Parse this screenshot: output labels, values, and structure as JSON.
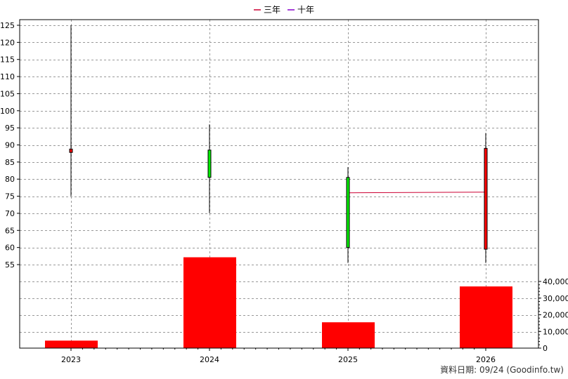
{
  "chart_data": {
    "type": "candlestick",
    "categories": [
      "2023",
      "2024",
      "2025",
      "2026"
    ],
    "candles": [
      {
        "year": "2023",
        "open": 87.8,
        "close": 88.8,
        "high": 125,
        "low": 75,
        "color": "#ff0000"
      },
      {
        "year": "2024",
        "open": 88.5,
        "close": 80.5,
        "high": 96,
        "low": 70,
        "color": "#00ee00"
      },
      {
        "year": "2025",
        "open": 80.5,
        "close": 60,
        "high": 83.5,
        "low": 55.5,
        "color": "#00ee00"
      },
      {
        "year": "2026",
        "open": 59.5,
        "close": 89,
        "high": 93.5,
        "low": 55.5,
        "color": "#ff0000"
      }
    ],
    "moving_averages": [
      {
        "name": "三年",
        "color": "#cc0033",
        "points": [
          {
            "x": "2025",
            "y": 76
          },
          {
            "x": "2026",
            "y": 76.2
          }
        ]
      },
      {
        "name": "十年",
        "color": "#8800cc",
        "points": []
      }
    ],
    "volume": {
      "values": [
        4500,
        54500,
        15500,
        37000
      ],
      "color": "#ff0000",
      "ticks": [
        "0",
        "10,000",
        "20,000",
        "30,000",
        "40,000"
      ],
      "ylim": [
        0,
        40000
      ]
    },
    "price_axis": {
      "ticks": [
        "55",
        "60",
        "65",
        "70",
        "75",
        "80",
        "85",
        "90",
        "95",
        "100",
        "105",
        "110",
        "115",
        "120",
        "125"
      ],
      "ylim": [
        55,
        125
      ]
    },
    "grid": true,
    "legend_position": "top-center"
  },
  "footer": "資料日期: 09/24  (Goodinfo.tw)"
}
